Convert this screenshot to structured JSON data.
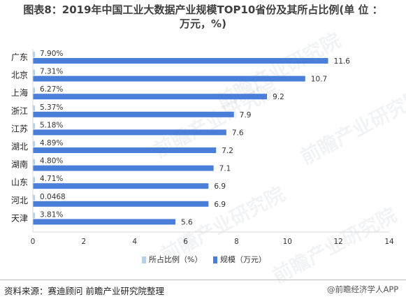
{
  "title_line1": "图表8：2019年中国工业大数据产业规模TOP10省份及其所占比例(单 位 ：",
  "title_line2": "万元，%)",
  "source_text": "资料来源：赛迪顾问 前瞻产业研究院整理",
  "brand_text": "@前瞻经济学人APP",
  "watermark_text": "前瞻产业研究院",
  "colors": {
    "share": "#b4d2ec",
    "scale": "#4a7fd9",
    "axis": "#d9d9d9"
  },
  "chart_data": {
    "type": "bar",
    "orientation": "horizontal",
    "categories": [
      "广东",
      "北京",
      "上海",
      "浙江",
      "江苏",
      "湖北",
      "湖南",
      "山东",
      "河北",
      "天津"
    ],
    "series": [
      {
        "name": "所占比例（%）",
        "values": [
          7.9,
          7.31,
          6.27,
          5.37,
          5.18,
          4.89,
          4.8,
          4.71,
          0.0468,
          3.81
        ],
        "labels": [
          "7.90%",
          "7.31%",
          "6.27%",
          "5.37%",
          "5.18%",
          "4.89%",
          "4.80%",
          "4.71%",
          "0.0468",
          "3.81%"
        ]
      },
      {
        "name": "规模（万元）",
        "values": [
          11.6,
          10.7,
          9.2,
          7.9,
          7.6,
          7.2,
          7.1,
          6.9,
          6.9,
          5.6
        ],
        "labels": [
          "11.6",
          "10.7",
          "9.2",
          "7.9",
          "7.6",
          "7.2",
          "7.1",
          "6.9",
          "6.9",
          "5.6"
        ]
      }
    ],
    "xlim": [
      0,
      14
    ],
    "xticks": [
      0,
      2,
      4,
      6,
      8,
      10,
      12,
      14
    ],
    "grid": false,
    "legend_position": "bottom"
  }
}
